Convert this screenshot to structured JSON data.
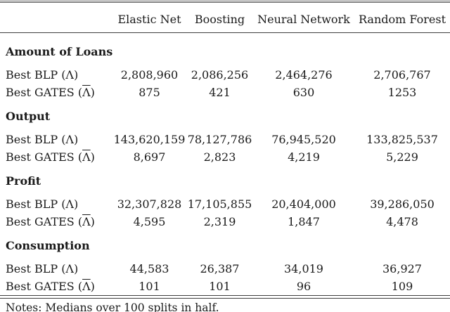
{
  "table": {
    "columns": [
      "Elastic Net",
      "Boosting",
      "Neural Network",
      "Random Forest"
    ],
    "row_labels": {
      "blp": "Best BLP (Λ)",
      "gates_pre": "Best GATES (",
      "gates_lambda": "Λ",
      "gates_post": ")"
    },
    "sections": [
      {
        "title": "Amount of Loans",
        "blp": [
          "2,808,960",
          "2,086,256",
          "2,464,276",
          "2,706,767"
        ],
        "gates": [
          "875",
          "421",
          "630",
          "1253"
        ]
      },
      {
        "title": "Output",
        "blp": [
          "143,620,159",
          "78,127,786",
          "76,945,520",
          "133,825,537"
        ],
        "gates": [
          "8,697",
          "2,823",
          "4,219",
          "5,229"
        ]
      },
      {
        "title": "Profit",
        "blp": [
          "32,307,828",
          "17,105,855",
          "20,404,000",
          "39,286,050"
        ],
        "gates": [
          "4,595",
          "2,319",
          "1,847",
          "4,478"
        ]
      },
      {
        "title": "Consumption",
        "blp": [
          "44,583",
          "26,387",
          "34,019",
          "36,927"
        ],
        "gates": [
          "101",
          "101",
          "96",
          "109"
        ]
      }
    ],
    "notes": "Notes: Medians over 100 splits in half."
  },
  "chart_data": {
    "type": "table",
    "title": "",
    "columns": [
      "Elastic Net",
      "Boosting",
      "Neural Network",
      "Random Forest"
    ],
    "rows": [
      {
        "group": "Amount of Loans",
        "label": "Best BLP (Λ)",
        "values": [
          2808960,
          2086256,
          2464276,
          2706767
        ]
      },
      {
        "group": "Amount of Loans",
        "label": "Best GATES (Λ̄)",
        "values": [
          875,
          421,
          630,
          1253
        ]
      },
      {
        "group": "Output",
        "label": "Best BLP (Λ)",
        "values": [
          143620159,
          78127786,
          76945520,
          133825537
        ]
      },
      {
        "group": "Output",
        "label": "Best GATES (Λ̄)",
        "values": [
          8697,
          2823,
          4219,
          5229
        ]
      },
      {
        "group": "Profit",
        "label": "Best BLP (Λ)",
        "values": [
          32307828,
          17105855,
          20404000,
          39286050
        ]
      },
      {
        "group": "Profit",
        "label": "Best GATES (Λ̄)",
        "values": [
          4595,
          2319,
          1847,
          4478
        ]
      },
      {
        "group": "Consumption",
        "label": "Best BLP (Λ)",
        "values": [
          44583,
          26387,
          34019,
          36927
        ]
      },
      {
        "group": "Consumption",
        "label": "Best GATES (Λ̄)",
        "values": [
          101,
          101,
          96,
          109
        ]
      }
    ]
  },
  "colors": {
    "background": "#ffffff",
    "text": "#1a1a1a",
    "rule": "#3f3f3f"
  }
}
